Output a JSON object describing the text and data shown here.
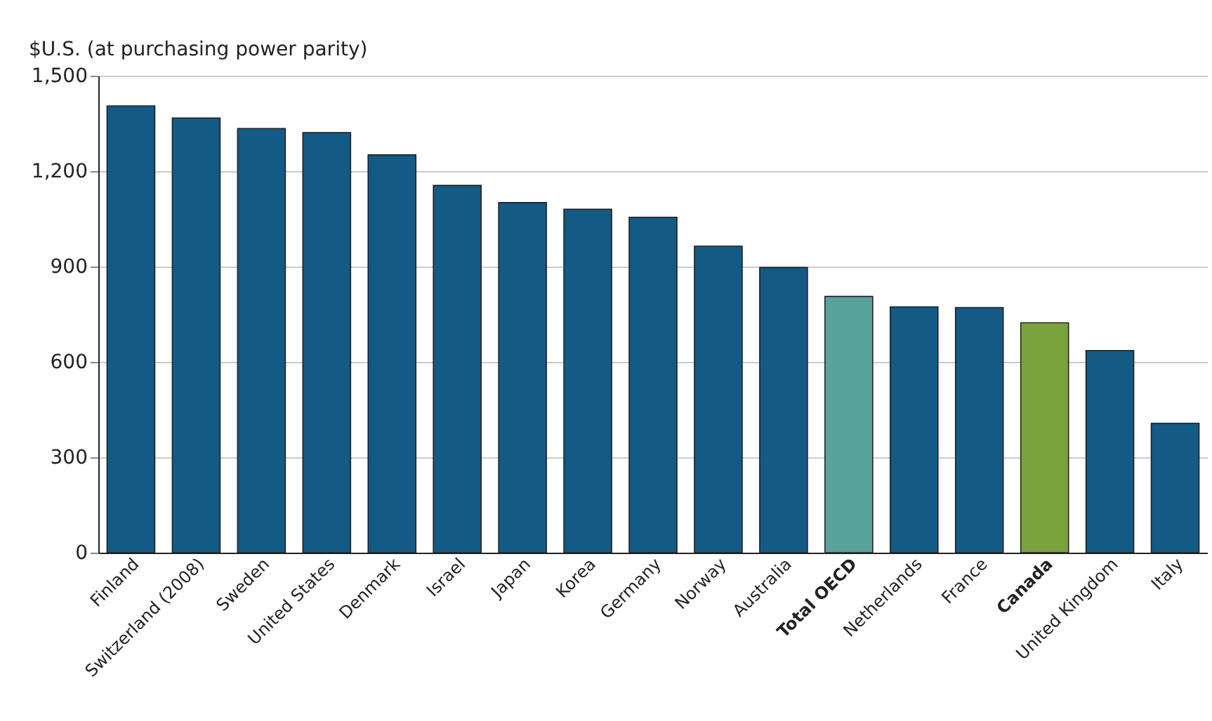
{
  "chart_data": {
    "type": "bar",
    "ylabel": "$U.S. (at purchasing power parity)",
    "categories": [
      "Finland",
      "Switzerland (2008)",
      "Sweden",
      "United States",
      "Denmark",
      "Israel",
      "Japan",
      "Korea",
      "Germany",
      "Norway",
      "Australia",
      "Total OECD",
      "Netherlands",
      "France",
      "Canada",
      "United Kingdom",
      "Italy"
    ],
    "values": [
      1405,
      1367,
      1334,
      1321,
      1251,
      1155,
      1101,
      1080,
      1055,
      964,
      897,
      806,
      773,
      771,
      723,
      636,
      407
    ],
    "colors": [
      "#135a85",
      "#135a85",
      "#135a85",
      "#135a85",
      "#135a85",
      "#135a85",
      "#135a85",
      "#135a85",
      "#135a85",
      "#135a85",
      "#135a85",
      "#5aa39b",
      "#135a85",
      "#135a85",
      "#7aa33e",
      "#135a85",
      "#135a85"
    ],
    "ylim": [
      0,
      1500
    ],
    "yticks": [
      0,
      300,
      600,
      900,
      {
        "value": 1200,
        "label": "1,200"
      },
      {
        "value": 1500,
        "label": "1,500"
      }
    ],
    "grid": "y"
  }
}
